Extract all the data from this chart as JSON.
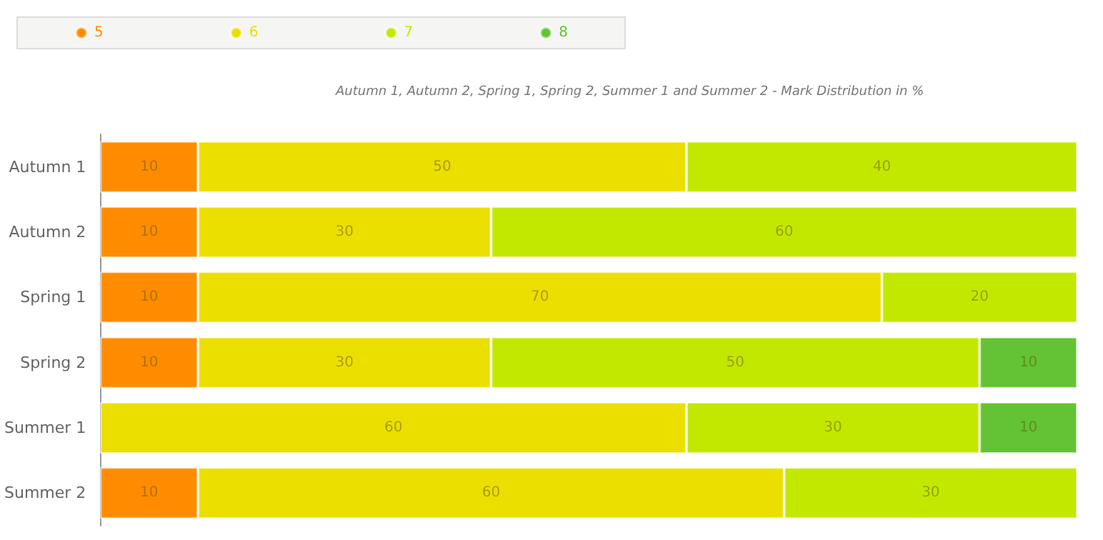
{
  "chart_data": {
    "type": "bar",
    "orientation": "horizontal",
    "stacked": true,
    "title": "Autumn 1, Autumn 2, Spring 1, Spring 2, Summer 1 and Summer 2 - Mark Distribution in %",
    "categories": [
      "Autumn 1",
      "Autumn 2",
      "Spring 1",
      "Spring 2",
      "Summer 1",
      "Summer 2"
    ],
    "series": [
      {
        "name": "5",
        "color": "#ff8c00",
        "values": [
          10,
          10,
          10,
          10,
          null,
          10
        ]
      },
      {
        "name": "6",
        "color": "#ebdf00",
        "values": [
          50,
          30,
          70,
          30,
          60,
          60
        ]
      },
      {
        "name": "7",
        "color": "#c3e800",
        "values": [
          40,
          60,
          20,
          50,
          30,
          30
        ]
      },
      {
        "name": "8",
        "color": "#63c334",
        "values": [
          null,
          null,
          null,
          10,
          10,
          null
        ]
      }
    ],
    "data_labels": true,
    "legend": "top left"
  }
}
